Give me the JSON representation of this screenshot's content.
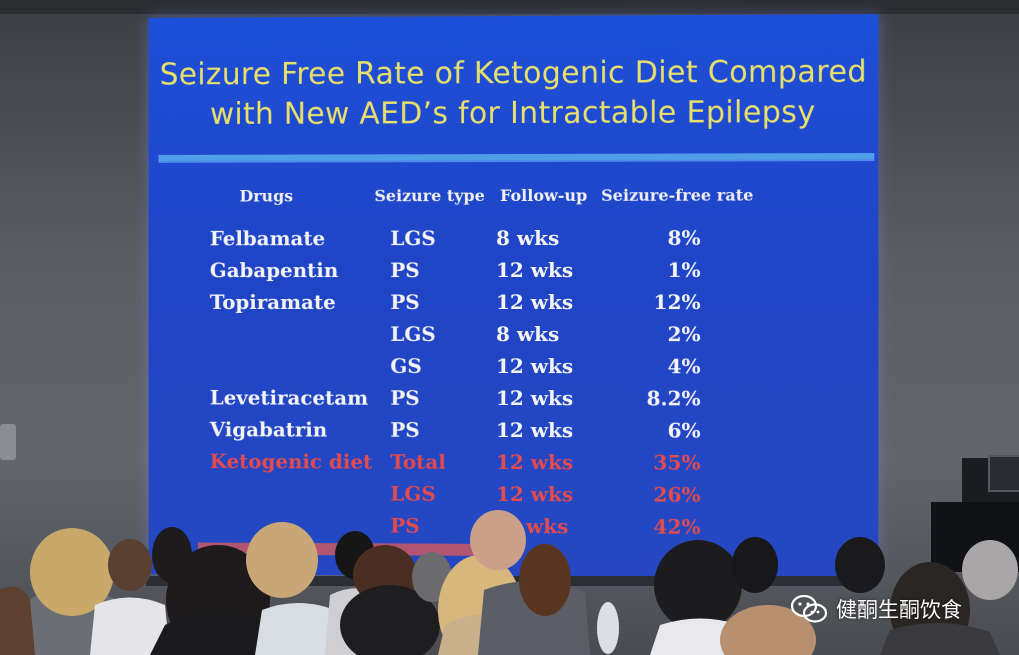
{
  "slide": {
    "title_line1": "Seizure Free Rate of Ketogenic Diet Compared",
    "title_line2": "with New AED’s for Intractable Epilepsy",
    "headers": [
      "Drugs",
      "Seizure type",
      "Follow-up",
      "Seizure-free rate"
    ],
    "rows": [
      {
        "drug": "Felbamate",
        "type": "LGS",
        "follow": "8 wks",
        "rate": "8%"
      },
      {
        "drug": "Gabapentin",
        "type": "PS",
        "follow": "12 wks",
        "rate": "1%"
      },
      {
        "drug": "Topiramate",
        "type": "PS",
        "follow": "12 wks",
        "rate": "12%"
      },
      {
        "drug": "",
        "type": "LGS",
        "follow": "8 wks",
        "rate": "2%"
      },
      {
        "drug": "",
        "type": "GS",
        "follow": "12 wks",
        "rate": "4%"
      },
      {
        "drug": "Levetiracetam",
        "type": "PS",
        "follow": "12 wks",
        "rate": "8.2%"
      },
      {
        "drug": "Vigabatrin",
        "type": "PS",
        "follow": "12 wks",
        "rate": "6%"
      },
      {
        "drug": "Ketogenic diet",
        "type": "Total",
        "follow": "12 wks",
        "rate": "35%"
      },
      {
        "drug": "",
        "type": "LGS",
        "follow": "12 wks",
        "rate": "26%"
      },
      {
        "drug": "",
        "type": "PS",
        "follow": "wks",
        "rate": "42%"
      }
    ],
    "colors": {
      "background": "#2044c6",
      "title": "#e8e06a",
      "text": "#f4f4f4",
      "highlight": "#e34b4e"
    }
  },
  "watermark": {
    "text": "健酮生酮饮食",
    "icon": "wechat-icon"
  }
}
